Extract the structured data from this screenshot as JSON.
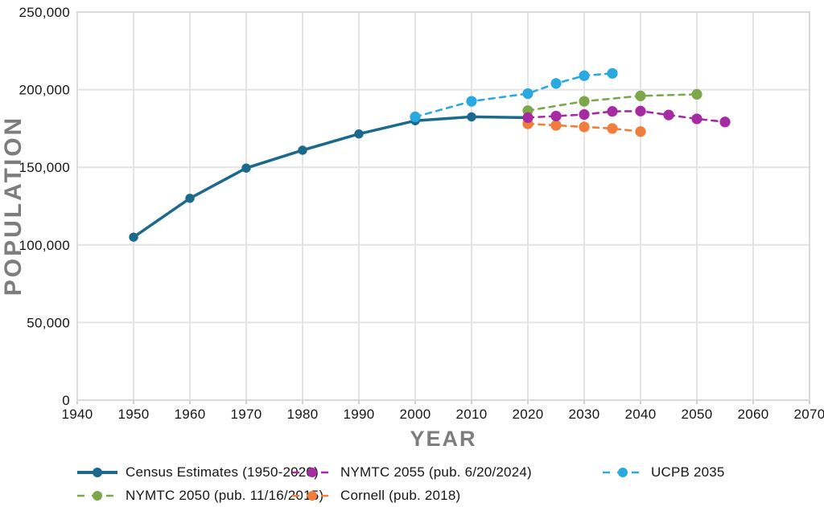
{
  "chart_data": {
    "type": "line",
    "title": "",
    "xlabel": "YEAR",
    "ylabel": "POPULATION",
    "xlim": [
      1940,
      2070
    ],
    "ylim": [
      0,
      250000
    ],
    "x_ticks": [
      1940,
      1950,
      1960,
      1970,
      1980,
      1990,
      2000,
      2010,
      2020,
      2030,
      2040,
      2050,
      2060,
      2070
    ],
    "y_ticks": [
      0,
      50000,
      100000,
      150000,
      200000,
      250000
    ],
    "y_tick_labels": [
      "0",
      "50,000",
      "100,000",
      "150,000",
      "200,000",
      "250,000"
    ],
    "grid": true,
    "legend_position": "bottom",
    "draw_order": [
      0,
      4,
      3,
      1,
      2
    ],
    "series": [
      {
        "name": "Census Estimates (1950-2020)",
        "color": "#1B698D",
        "line_style": "solid",
        "x": [
          1950,
          1960,
          1970,
          1980,
          1990,
          2000,
          2010,
          2020
        ],
        "y": [
          105000,
          130000,
          149500,
          161000,
          171500,
          180000,
          182500,
          182000
        ]
      },
      {
        "name": "NYMTC 2055 (pub. 6/20/2024)",
        "color": "#A62BA2",
        "line_style": "dashed",
        "x": [
          2020,
          2025,
          2030,
          2035,
          2040,
          2045,
          2050,
          2055
        ],
        "y": [
          182000,
          183000,
          184000,
          186000,
          186200,
          183700,
          181200,
          179200
        ]
      },
      {
        "name": "UCPB 2035",
        "color": "#2AA9E0",
        "line_style": "dashed",
        "x": [
          2000,
          2010,
          2020,
          2025,
          2030,
          2035
        ],
        "y": [
          182500,
          192500,
          197500,
          204000,
          209000,
          210500
        ]
      },
      {
        "name": "NYMTC 2050 (pub. 11/16/2015)",
        "color": "#7DA74B",
        "line_style": "dashed",
        "x": [
          2020,
          2030,
          2040,
          2050
        ],
        "y": [
          186500,
          192500,
          196000,
          197000
        ]
      },
      {
        "name": "Cornell (pub. 2018)",
        "color": "#F07D3C",
        "line_style": "dashed",
        "x": [
          2020,
          2025,
          2030,
          2035,
          2040
        ],
        "y": [
          178000,
          177000,
          176000,
          175000,
          173000
        ]
      }
    ],
    "style": {
      "gridline_color": "#E4E4E4",
      "border_color": "#D9D9D9",
      "tick_color": "#CFCFCF",
      "axis_title_color": "#7D7D7D",
      "tick_label_color": "#161616"
    }
  }
}
